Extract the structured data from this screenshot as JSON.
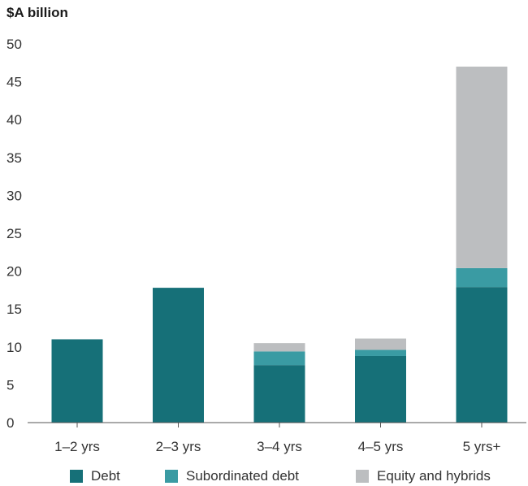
{
  "chart_data": {
    "type": "bar",
    "stacked": true,
    "unit_label": "$A billion",
    "categories": [
      "1–2 yrs",
      "2–3 yrs",
      "3–4 yrs",
      "4–5 yrs",
      "5 yrs+"
    ],
    "series": [
      {
        "name": "Debt",
        "color": "#167078",
        "values": [
          11.0,
          17.8,
          7.6,
          8.8,
          17.9
        ]
      },
      {
        "name": "Subordinated debt",
        "color": "#3a9ba3",
        "values": [
          0,
          0,
          1.8,
          0.8,
          2.5
        ]
      },
      {
        "name": "Equity and hybrids",
        "color": "#bcbec0",
        "values": [
          0,
          0,
          1.1,
          1.5,
          26.6
        ]
      }
    ],
    "ylim": [
      0,
      50
    ],
    "yticks": [
      0,
      5,
      10,
      15,
      20,
      25,
      30,
      35,
      40,
      45,
      50
    ],
    "grid": false,
    "legend_position": "bottom"
  }
}
